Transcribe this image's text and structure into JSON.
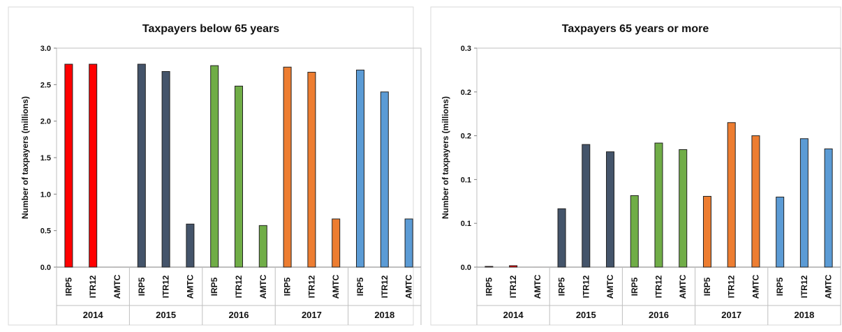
{
  "colors": {
    "2014": "#ff0000",
    "2015": "#44546a",
    "2016": "#70ad47",
    "2017": "#ed7d31",
    "2018": "#5b9bd5"
  },
  "chart_data": [
    {
      "type": "bar",
      "title": "Taxpayers below 65 years",
      "ylabel": "Number of taxpayers (millions)",
      "ylim": [
        0,
        3.0
      ],
      "yticks": [
        "0.0",
        "0.5",
        "1.0",
        "1.5",
        "2.0",
        "2.5",
        "3.0"
      ],
      "groups": [
        "2014",
        "2015",
        "2016",
        "2017",
        "2018"
      ],
      "categories": [
        "IRP5",
        "ITR12",
        "AMTC"
      ],
      "grid": false,
      "values": {
        "2014": [
          2.78,
          2.78,
          0.0
        ],
        "2015": [
          2.78,
          2.68,
          0.59
        ],
        "2016": [
          2.76,
          2.48,
          0.57
        ],
        "2017": [
          2.74,
          2.67,
          0.66
        ],
        "2018": [
          2.7,
          2.4,
          0.66
        ]
      }
    },
    {
      "type": "bar",
      "title": "Taxpayers 65 years or more",
      "ylabel": "Number of taxpayers (millions)",
      "ylim": [
        0,
        0.3
      ],
      "yticks": [
        "0.0",
        "0.1",
        "0.1",
        "0.2",
        "0.2",
        "0.3"
      ],
      "groups": [
        "2014",
        "2015",
        "2016",
        "2017",
        "2018"
      ],
      "categories": [
        "IRP5",
        "ITR12",
        "AMTC"
      ],
      "grid": false,
      "values": {
        "2014": [
          0.001,
          0.002,
          0.0
        ],
        "2015": [
          0.08,
          0.168,
          0.158
        ],
        "2016": [
          0.098,
          0.17,
          0.161
        ],
        "2017": [
          0.097,
          0.198,
          0.18
        ],
        "2018": [
          0.096,
          0.176,
          0.162
        ]
      }
    }
  ]
}
